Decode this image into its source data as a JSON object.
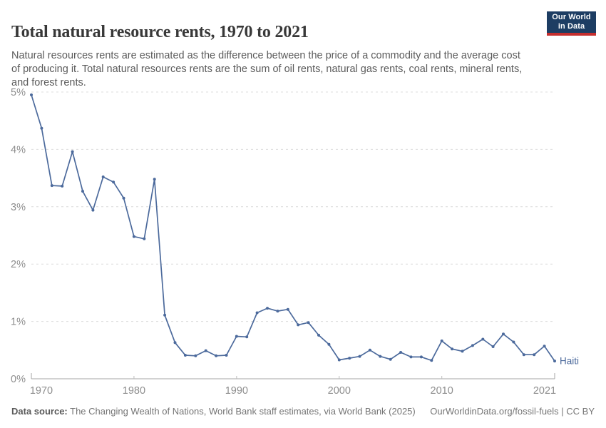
{
  "header": {
    "title": "Total natural resource rents, 1970 to 2021",
    "subtitle": "Natural resources rents are estimated as the difference between the price of a commodity and the average cost of producing it. Total natural resources rents are the sum of oil rents, natural gas rents, coal rents, mineral rents, and forest rents.",
    "logo": {
      "line1": "Our World",
      "line2": "in Data",
      "bg_color": "#1d3d63",
      "accent_color": "#c52e2e"
    }
  },
  "chart_data": {
    "type": "line",
    "title": "Total natural resource rents, 1970 to 2021",
    "xlabel": "",
    "ylabel": "",
    "xlim": [
      1970,
      2021
    ],
    "ylim": [
      0,
      5
    ],
    "grid": "horizontal-dashed",
    "legend_position": "end-of-line-label",
    "x_ticks": [
      1970,
      1980,
      1990,
      2000,
      2010,
      2021
    ],
    "y_ticks": [
      "0%",
      "1%",
      "2%",
      "3%",
      "4%",
      "5%"
    ],
    "series": [
      {
        "name": "Haiti",
        "color": "#4c6a9c",
        "x": [
          1970,
          1971,
          1972,
          1973,
          1974,
          1975,
          1976,
          1977,
          1978,
          1979,
          1980,
          1981,
          1982,
          1983,
          1984,
          1985,
          1986,
          1987,
          1988,
          1989,
          1990,
          1991,
          1992,
          1993,
          1994,
          1995,
          1996,
          1997,
          1998,
          1999,
          2000,
          2001,
          2002,
          2003,
          2004,
          2005,
          2006,
          2007,
          2008,
          2009,
          2010,
          2011,
          2012,
          2013,
          2014,
          2015,
          2016,
          2017,
          2018,
          2019,
          2020,
          2021
        ],
        "values": [
          4.95,
          4.37,
          3.37,
          3.36,
          3.96,
          3.27,
          2.94,
          3.52,
          3.43,
          3.15,
          2.48,
          2.44,
          3.48,
          1.11,
          0.63,
          0.41,
          0.4,
          0.49,
          0.4,
          0.41,
          0.74,
          0.73,
          1.15,
          1.23,
          1.18,
          1.21,
          0.94,
          0.98,
          0.76,
          0.6,
          0.33,
          0.36,
          0.39,
          0.5,
          0.39,
          0.34,
          0.46,
          0.38,
          0.38,
          0.32,
          0.66,
          0.52,
          0.48,
          0.58,
          0.69,
          0.56,
          0.78,
          0.64,
          0.42,
          0.42,
          0.57,
          0.31
        ]
      }
    ],
    "colors": {
      "line": "#4c6a9c",
      "gridline": "#dcdcdc",
      "axis": "#a5a5a5",
      "tick_label": "#8e8e8e"
    }
  },
  "footer": {
    "datasource_label": "Data source:",
    "datasource_text": " The Changing Wealth of Nations, World Bank staff estimates, via World Bank (2025)",
    "link_text": "OurWorldinData.org/fossil-fuels | CC BY"
  }
}
